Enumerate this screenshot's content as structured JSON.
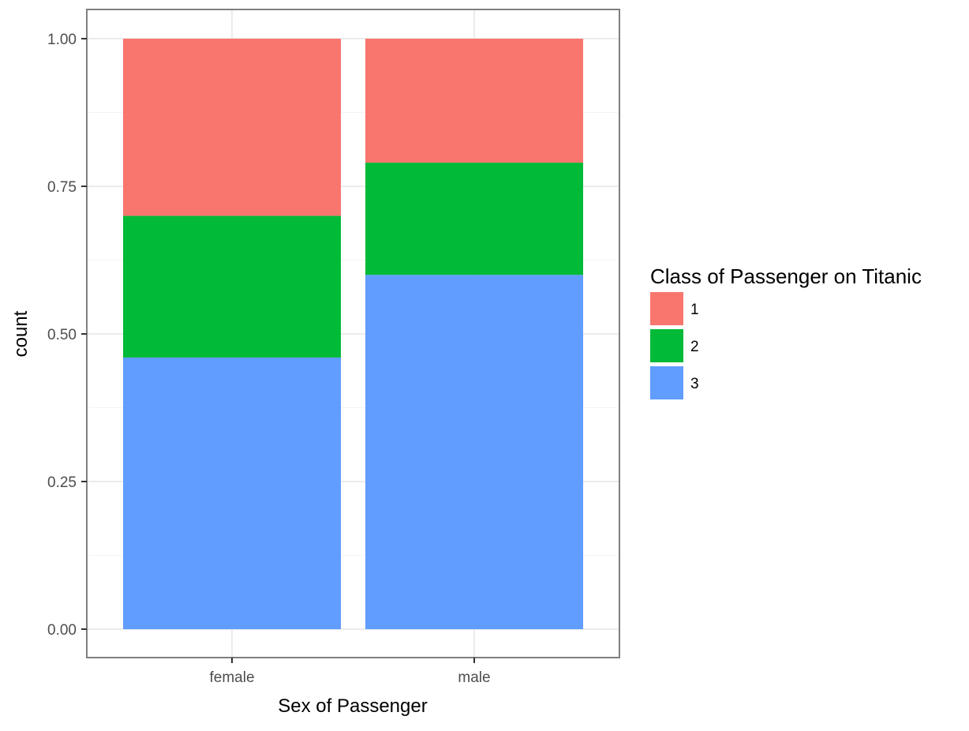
{
  "chart_data": {
    "type": "bar",
    "stacked": true,
    "categories": [
      "female",
      "male"
    ],
    "series": [
      {
        "name": "1",
        "values": [
          0.3,
          0.21
        ],
        "color": "#f8766d"
      },
      {
        "name": "2",
        "values": [
          0.24,
          0.19
        ],
        "color": "#00ba38"
      },
      {
        "name": "3",
        "values": [
          0.46,
          0.6
        ],
        "color": "#619cff"
      }
    ],
    "xlabel": "Sex of Passenger",
    "ylabel": "count",
    "ylim": [
      0,
      1
    ],
    "yticks": [
      0,
      0.25,
      0.5,
      0.75,
      1
    ],
    "ytick_labels": [
      "0.00",
      "0.25",
      "0.50",
      "0.75",
      "1.00"
    ],
    "legend": {
      "title": "Class of Passenger on Titanic",
      "position": "right"
    },
    "grid": true,
    "panel_border_color": "#7f7f7f",
    "grid_color": "#ebebeb"
  }
}
